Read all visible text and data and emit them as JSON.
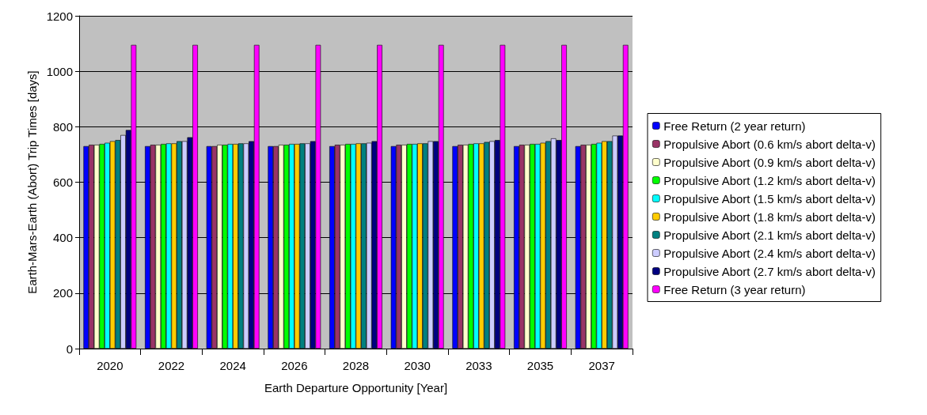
{
  "chart_data": {
    "type": "bar",
    "xlabel": "Earth Departure Opportunity [Year]",
    "ylabel": "Earth-Mars-Earth (Abort) Trip Times [days]",
    "categories": [
      "2020",
      "2022",
      "2024",
      "2026",
      "2028",
      "2030",
      "2033",
      "2035",
      "2037"
    ],
    "series": [
      {
        "name": "Free Return (2 year return)",
        "color": "#0000ff",
        "values": [
          730,
          730,
          730,
          730,
          730,
          730,
          730,
          730,
          730
        ]
      },
      {
        "name": "Propulsive Abort (0.6 km/s abort delta-v)",
        "color": "#993366",
        "values": [
          735,
          735,
          730,
          730,
          735,
          735,
          735,
          735,
          735
        ]
      },
      {
        "name": "Propulsive Abort (0.9 km/s abort delta-v)",
        "color": "#ffffcc",
        "values": [
          735,
          735,
          735,
          735,
          735,
          735,
          735,
          735,
          735
        ]
      },
      {
        "name": "Propulsive Abort (1.2 km/s abort delta-v)",
        "color": "#00ff00",
        "values": [
          738,
          738,
          735,
          735,
          738,
          738,
          738,
          738,
          738
        ]
      },
      {
        "name": "Propulsive Abort (1.5 km/s abort delta-v)",
        "color": "#00ffff",
        "values": [
          742,
          740,
          738,
          738,
          738,
          738,
          740,
          738,
          742
        ]
      },
      {
        "name": "Propulsive Abort (1.8 km/s abort delta-v)",
        "color": "#ffcc00",
        "values": [
          748,
          740,
          738,
          738,
          740,
          740,
          740,
          742,
          748
        ]
      },
      {
        "name": "Propulsive Abort (2.1 km/s abort delta-v)",
        "color": "#008080",
        "values": [
          752,
          748,
          740,
          740,
          740,
          740,
          745,
          748,
          748
        ]
      },
      {
        "name": "Propulsive Abort (2.4 km/s abort delta-v)",
        "color": "#ccccff",
        "values": [
          770,
          748,
          740,
          740,
          742,
          748,
          748,
          758,
          768
        ]
      },
      {
        "name": "Propulsive Abort (2.7 km/s abort delta-v)",
        "color": "#000080",
        "values": [
          788,
          762,
          748,
          748,
          748,
          748,
          752,
          752,
          768
        ]
      },
      {
        "name": "Free Return (3 year return)",
        "color": "#ff00ff",
        "values": [
          1095,
          1095,
          1095,
          1095,
          1095,
          1095,
          1095,
          1095,
          1095
        ]
      }
    ],
    "ylim": [
      0,
      1200
    ],
    "yticks": [
      0,
      200,
      400,
      600,
      800,
      1000,
      1200
    ],
    "grid": "y",
    "legend": "right"
  }
}
